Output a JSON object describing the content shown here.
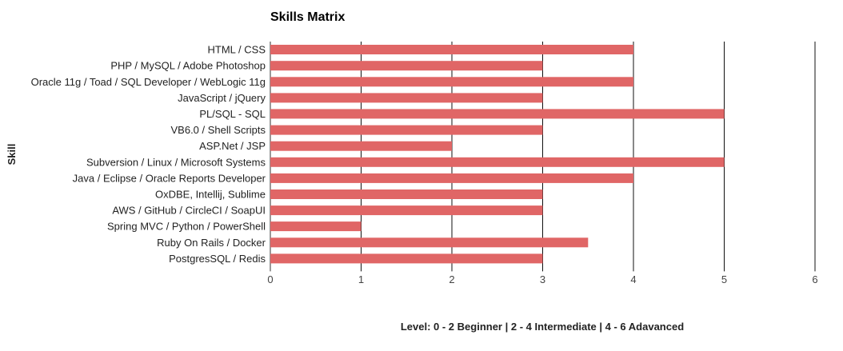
{
  "chart_data": {
    "type": "bar",
    "orientation": "horizontal",
    "title": "Skills Matrix",
    "xlabel": "Level: 0 - 2 Beginner | 2 - 4 Intermediate | 4 - 6 Adavanced",
    "ylabel": "Skill",
    "xlim": [
      0,
      6
    ],
    "xticks": [
      "0",
      "1",
      "2",
      "3",
      "4",
      "5",
      "6"
    ],
    "grid": true,
    "legend": "none",
    "bar_color": "#e06666",
    "categories": [
      "HTML / CSS",
      "PHP / MySQL / Adobe Photoshop",
      "Oracle 11g / Toad / SQL Developer / WebLogic 11g",
      "JavaScript / jQuery",
      "PL/SQL - SQL",
      "VB6.0 / Shell Scripts",
      "ASP.Net / JSP",
      "Subversion / Linux / Microsoft Systems",
      "Java / Eclipse / Oracle Reports Developer",
      "OxDBE, Intellij, Sublime",
      "AWS / GitHub / CircleCI / SoapUI",
      "Spring MVC / Python / PowerShell",
      "Ruby On Rails / Docker",
      "PostgresSQL / Redis"
    ],
    "values": [
      4,
      3,
      4,
      3,
      5,
      3,
      2,
      5,
      4,
      3,
      3,
      1,
      3.5,
      3
    ]
  }
}
